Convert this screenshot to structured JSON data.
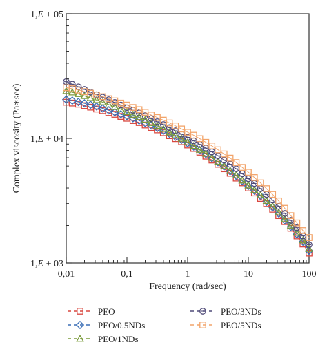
{
  "chart_data": {
    "type": "line",
    "xlabel": "Frequency (rad/sec)",
    "ylabel": "Complex viscosity (Pa∗sec)",
    "x_scale": "log",
    "y_scale": "log",
    "xlim": [
      0.01,
      100
    ],
    "ylim": [
      1000,
      100000
    ],
    "grid": false,
    "legend_position": "bottom",
    "x_ticks": [
      {
        "value": 0.01,
        "label": "0,01"
      },
      {
        "value": 0.1,
        "label": "0,1"
      },
      {
        "value": 1,
        "label": "1"
      },
      {
        "value": 10,
        "label": "10"
      },
      {
        "value": 100,
        "label": "100"
      }
    ],
    "y_ticks": [
      {
        "value": 1000,
        "label_a": "1,",
        "label_b": "E",
        "label_c": " + 03"
      },
      {
        "value": 10000,
        "label_a": "1,",
        "label_b": "E",
        "label_c": " + 04"
      },
      {
        "value": 100000,
        "label_a": "1,",
        "label_b": "E",
        "label_c": " + 05"
      }
    ],
    "x": [
      0.01,
      0.01259,
      0.01585,
      0.01995,
      0.02512,
      0.03162,
      0.03981,
      0.05012,
      0.0631,
      0.07943,
      0.1,
      0.1259,
      0.1585,
      0.1995,
      0.2512,
      0.3162,
      0.3981,
      0.5012,
      0.631,
      0.7943,
      1,
      1.259,
      1.585,
      1.995,
      2.512,
      3.162,
      3.981,
      5.012,
      6.31,
      7.943,
      10,
      12.59,
      15.85,
      19.95,
      25.12,
      31.62,
      39.81,
      50.12,
      63.1,
      79.43,
      100
    ],
    "series": [
      {
        "name": "PEO",
        "marker": "square",
        "color": "#d9473f",
        "values": [
          19500,
          19200,
          18800,
          18300,
          17800,
          17200,
          16700,
          16100,
          15600,
          15000,
          14500,
          13900,
          13400,
          12800,
          12200,
          11700,
          11100,
          10500,
          9950,
          9400,
          8850,
          8300,
          7750,
          7200,
          6700,
          6200,
          5700,
          5250,
          4800,
          4400,
          4000,
          3650,
          3300,
          3000,
          2700,
          2400,
          2150,
          1900,
          1650,
          1420,
          1200
        ]
      },
      {
        "name": "PEO/0.5NDs",
        "marker": "diamond",
        "color": "#3b6fb6",
        "values": [
          20500,
          20100,
          19600,
          19100,
          18600,
          18000,
          17400,
          16800,
          16200,
          15600,
          15100,
          14500,
          13900,
          13300,
          12700,
          12100,
          11500,
          10900,
          10300,
          9750,
          9150,
          8600,
          8050,
          7500,
          6950,
          6450,
          5950,
          5450,
          5000,
          4550,
          4150,
          3800,
          3450,
          3100,
          2800,
          2500,
          2200,
          1950,
          1700,
          1480,
          1250
        ]
      },
      {
        "name": "PEO/1NDs",
        "marker": "triangle",
        "color": "#7a9a3a",
        "values": [
          24000,
          23400,
          22700,
          21900,
          21100,
          20300,
          19500,
          18700,
          17900,
          17100,
          16300,
          15500,
          14800,
          14100,
          13300,
          12600,
          11900,
          11200,
          10600,
          9950,
          9300,
          8700,
          8100,
          7550,
          7000,
          6500,
          6000,
          5500,
          5050,
          4600,
          4200,
          3850,
          3500,
          3150,
          2850,
          2550,
          2250,
          2000,
          1750,
          1520,
          1300
        ]
      },
      {
        "name": "PEO/3NDs",
        "marker": "circle",
        "color": "#4f4a78",
        "values": [
          28500,
          27200,
          25900,
          24700,
          23500,
          22400,
          21400,
          20400,
          19400,
          18500,
          17600,
          16800,
          16000,
          15200,
          14400,
          13600,
          12900,
          12200,
          11500,
          10800,
          10200,
          9550,
          8950,
          8350,
          7800,
          7250,
          6700,
          6200,
          5700,
          5200,
          4750,
          4350,
          3950,
          3550,
          3200,
          2850,
          2500,
          2200,
          1920,
          1650,
          1400
        ]
      },
      {
        "name": "PEO/5NDs",
        "marker": "square",
        "color": "#f2a46a",
        "values": [
          25500,
          25000,
          24400,
          23700,
          23000,
          22300,
          21600,
          20800,
          20000,
          19200,
          18500,
          17700,
          17000,
          16200,
          15400,
          14700,
          14000,
          13300,
          12600,
          11900,
          11200,
          10600,
          9950,
          9300,
          8700,
          8100,
          7500,
          6950,
          6400,
          5850,
          5350,
          4850,
          4400,
          3950,
          3550,
          3150,
          2750,
          2400,
          2100,
          1820,
          1600
        ]
      }
    ]
  }
}
